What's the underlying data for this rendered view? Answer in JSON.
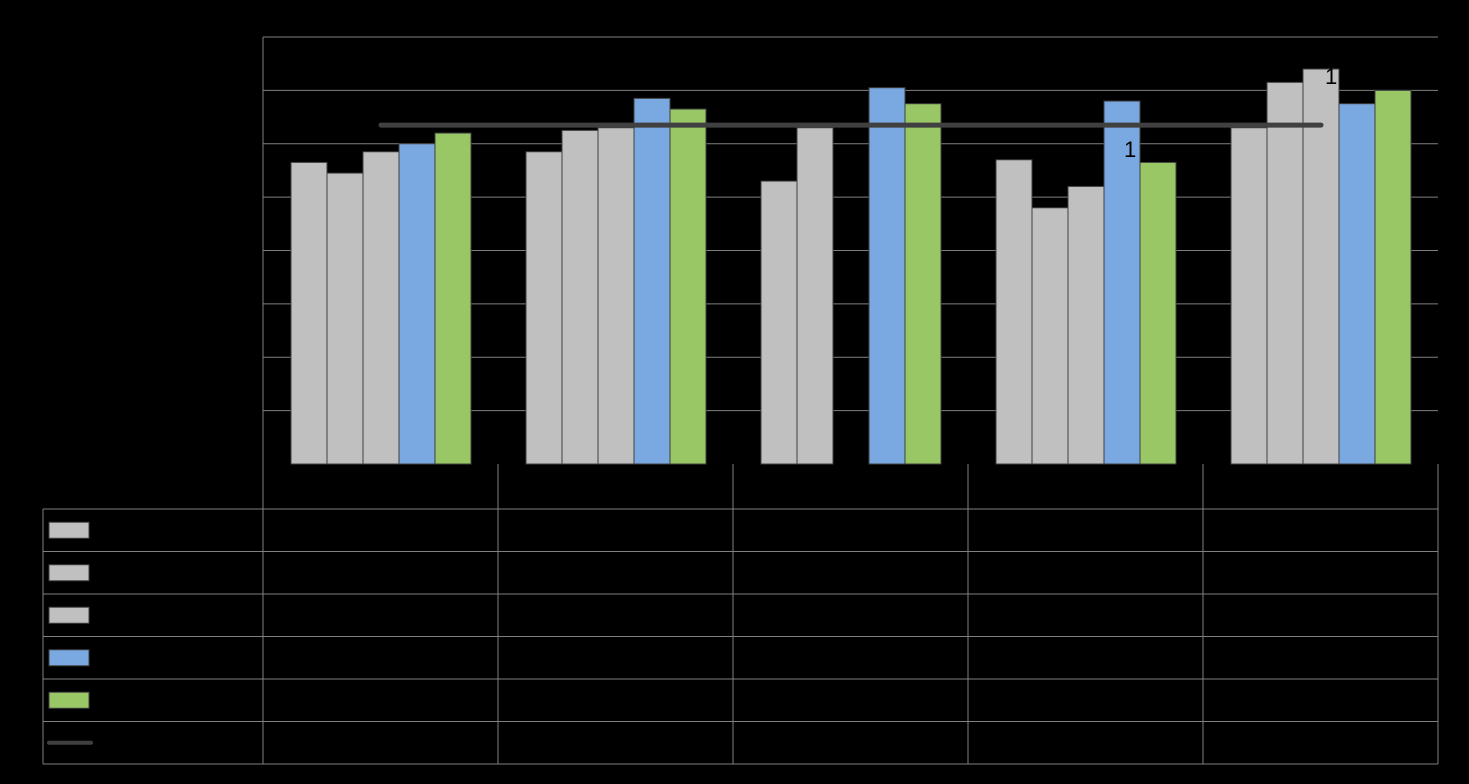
{
  "colors": {
    "background": "#000000",
    "grid": "#808080",
    "gray_bar": "#c0c0c0",
    "blue_bar": "#7aa8e0",
    "green_bar": "#99c765",
    "target_line": "#404040",
    "text": "#000000"
  },
  "chart_data": {
    "type": "bar",
    "categories": [
      "",
      "",
      "",
      "",
      ""
    ],
    "series": [
      {
        "color": "#c0c0c0",
        "values": [
          56.5,
          58.5,
          53,
          57,
          63
        ]
      },
      {
        "color": "#c0c0c0",
        "values": [
          54.5,
          62.5,
          63,
          48,
          71.5
        ]
      },
      {
        "color": "#c0c0c0",
        "values": [
          58.5,
          63,
          0,
          52,
          74
        ]
      },
      {
        "color": "#7aa8e0",
        "values": [
          60,
          68.5,
          70.5,
          68,
          67.5
        ]
      },
      {
        "color": "#99c765",
        "values": [
          62,
          66.5,
          67.5,
          56.5,
          70
        ]
      }
    ],
    "reference_line": {
      "color": "#404040",
      "value": 63.5
    },
    "ylim": [
      0,
      80
    ],
    "grid": true,
    "legend": "data-table-below",
    "annotations": [
      "1",
      "1"
    ],
    "title": "",
    "xlabel": "",
    "ylabel": ""
  }
}
